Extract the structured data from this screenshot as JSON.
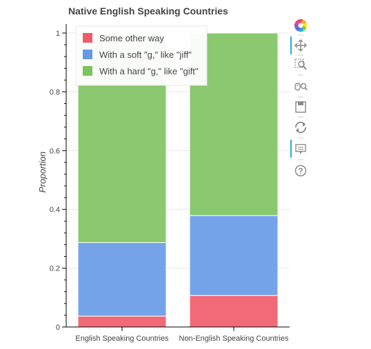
{
  "chart_data": {
    "type": "bar",
    "stacked": true,
    "title": "Native English Speaking Countries",
    "xlabel": "",
    "ylabel": "Proportion",
    "ylim": [
      0,
      1
    ],
    "yticks": [
      0,
      0.2,
      0.4,
      0.6,
      0.8,
      1
    ],
    "ytick_labels": [
      "0",
      "0.2",
      "0.4",
      "0.6",
      "0.8",
      "1"
    ],
    "categories": [
      "English Speaking Countries",
      "Non-English Speaking Countries"
    ],
    "series": [
      {
        "name": "Some other way",
        "color": "#f15a68",
        "values": [
          0.037,
          0.107
        ]
      },
      {
        "name": "With a soft \"g,\" like \"jiff\"",
        "color": "#6699e8",
        "values": [
          0.25,
          0.272
        ]
      },
      {
        "name": "With a hard \"g,\" like \"gift\"",
        "color": "#7dc35f",
        "values": [
          0.713,
          0.621
        ]
      }
    ],
    "legend": {
      "position": "top-left"
    },
    "grid": true
  },
  "toolbar": {
    "tools": [
      "bokeh-logo-icon",
      "pan-icon",
      "box-zoom-icon",
      "wheel-zoom-icon",
      "save-icon",
      "reset-icon",
      "hover-icon",
      "help-icon"
    ]
  }
}
